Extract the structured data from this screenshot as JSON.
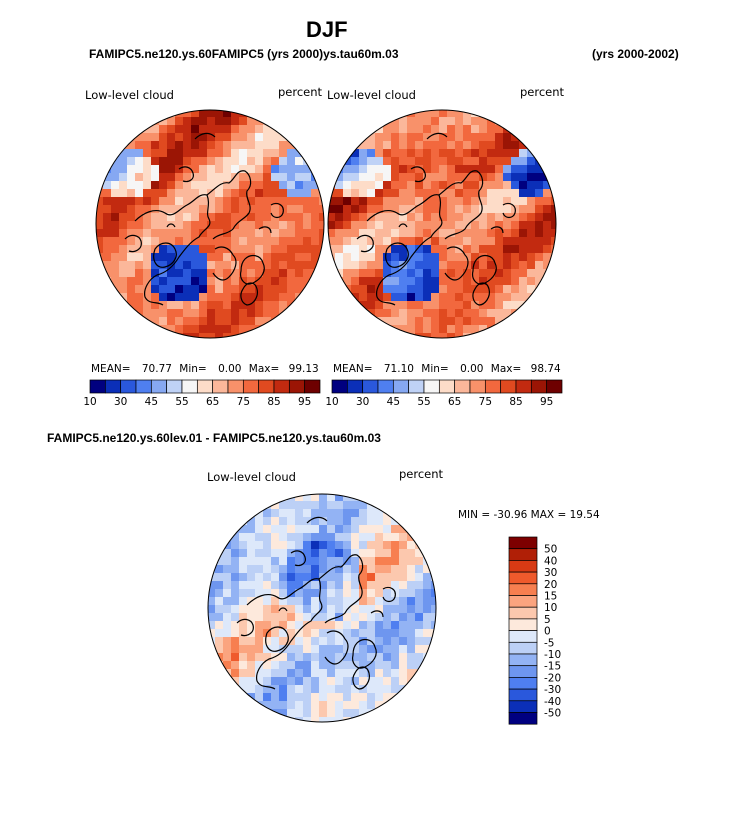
{
  "page": {
    "title": "DJF",
    "case_header_overlap": "FAMIPC5.ne120.ys.60lev.01 FAMIPC5.ne120.ys.tau60m.03",
    "case_header_display": "FAMIPC5.ne120.ys.60FAMIPC5 (yrs 2000)ys.tau60m.03",
    "years_right": "(yrs 2000-2002)",
    "diff_title": "FAMIPC5.ne120.ys.60lev.01 - FAMIPC5.ne120.ys.tau60m.03"
  },
  "colors": {
    "land_outline": "#000000",
    "abs_levels": [
      "#000080",
      "#0b2fb8",
      "#2a58dc",
      "#4f7ff0",
      "#86a8f2",
      "#bfd2f6",
      "#f6f6f6",
      "#fddcc8",
      "#fbb79a",
      "#f8916a",
      "#f2683e",
      "#e04a20",
      "#c22a10",
      "#9b1505",
      "#6e0000"
    ],
    "diff_levels": [
      "#000080",
      "#0b2fb8",
      "#2a58dc",
      "#4f7ff0",
      "#6e96ef",
      "#93b3f4",
      "#bcd0f6",
      "#dde8fa",
      "#fde9dc",
      "#fcc8ae",
      "#fba47f",
      "#f77f50",
      "#ef5a2c",
      "#d83a14",
      "#b01f06",
      "#7d0000"
    ]
  },
  "chart_data": [
    {
      "type": "heatmap",
      "id": "map_left",
      "field_label": "Low-level cloud",
      "units": "percent",
      "stats": {
        "mean_label": "MEAN=",
        "mean": "70.77",
        "min_label": "Min=",
        "min": "0.00",
        "max_label": "Max=",
        "max": "99.13"
      },
      "colorbar_ticks": [
        "10",
        "30",
        "45",
        "55",
        "65",
        "75",
        "85",
        "95"
      ],
      "projection": "north polar stereographic"
    },
    {
      "type": "heatmap",
      "id": "map_right",
      "field_label": "Low-level cloud",
      "units": "percent",
      "stats": {
        "mean_label": "MEAN=",
        "mean": "71.10",
        "min_label": "Min=",
        "min": "0.00",
        "max_label": "Max=",
        "max": "98.74"
      },
      "colorbar_ticks": [
        "10",
        "30",
        "45",
        "55",
        "65",
        "75",
        "85",
        "95"
      ],
      "projection": "north polar stereographic"
    },
    {
      "type": "heatmap",
      "id": "map_diff",
      "field_label": "Low-level cloud",
      "units": "percent",
      "minmax_text": "MIN = -30.96 MAX =  19.54",
      "colorbar_ticks": [
        "50",
        "40",
        "30",
        "20",
        "15",
        "10",
        "5",
        "0",
        "-5",
        "-10",
        "-15",
        "-20",
        "-30",
        "-40",
        "-50"
      ],
      "projection": "north polar stereographic"
    }
  ]
}
